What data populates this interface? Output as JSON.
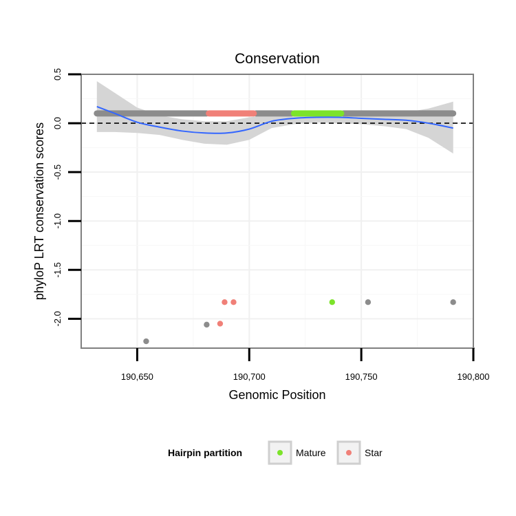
{
  "chart_data": {
    "type": "scatter",
    "title": "Conservation",
    "xlabel": "Genomic Position",
    "ylabel": "phyloP LRT conservation scores",
    "xlim": [
      190625,
      190800
    ],
    "ylim": [
      -2.3,
      0.5
    ],
    "x_ticks": [
      190650,
      190700,
      190750,
      190800
    ],
    "x_tick_labels": [
      "190,650",
      "190,700",
      "190,750",
      "190,800"
    ],
    "y_ticks": [
      0.5,
      0.0,
      -0.5,
      -1.0,
      -1.5,
      -2.0
    ],
    "y_tick_labels": [
      "0.5",
      "0.0",
      "-0.5",
      "-1.0",
      "-1.5",
      "-2.0"
    ],
    "reference_line": {
      "y": 0,
      "style": "dashed"
    },
    "legend": {
      "title": "Hairpin partition",
      "position": "bottom",
      "entries": [
        {
          "label": "Mature",
          "color": "#7CE32A"
        },
        {
          "label": "Star",
          "color": "#F08078"
        }
      ]
    },
    "colors": {
      "other": "#8C8C8C",
      "Mature": "#7CE32A",
      "Star": "#F08078",
      "smooth": "#3366FF",
      "band": "#D3D3D3"
    },
    "series": [
      {
        "name": "other",
        "segments": [
          [
            190632,
            190681
          ],
          [
            190703,
            190719
          ],
          [
            190742,
            190791
          ]
        ],
        "y": 0.1,
        "points": [
          [
            190654,
            -2.23
          ],
          [
            190681,
            -2.06
          ],
          [
            190753,
            -1.83
          ],
          [
            190791,
            -1.83
          ]
        ]
      },
      {
        "name": "Star",
        "segments": [
          [
            190682,
            190702
          ]
        ],
        "y": 0.1,
        "points": [
          [
            190687,
            -2.05
          ],
          [
            190689,
            -1.83
          ],
          [
            190693,
            -1.83
          ]
        ]
      },
      {
        "name": "Mature",
        "segments": [
          [
            190720,
            190741
          ]
        ],
        "y": 0.1,
        "points": [
          [
            190737,
            -1.83
          ]
        ]
      }
    ],
    "smooth": {
      "method": "loess",
      "x": [
        190632,
        190640,
        190650,
        190660,
        190670,
        190680,
        190690,
        190700,
        190710,
        190720,
        190730,
        190740,
        190750,
        190760,
        190770,
        190780,
        190791
      ],
      "y": [
        0.17,
        0.1,
        0.01,
        -0.04,
        -0.08,
        -0.1,
        -0.1,
        -0.06,
        0.02,
        0.05,
        0.06,
        0.06,
        0.05,
        0.04,
        0.03,
        0.0,
        -0.05
      ],
      "upper": [
        0.43,
        0.31,
        0.16,
        0.08,
        0.04,
        0.02,
        0.02,
        0.06,
        0.09,
        0.11,
        0.12,
        0.12,
        0.11,
        0.1,
        0.11,
        0.15,
        0.22
      ],
      "lower": [
        -0.09,
        -0.09,
        -0.1,
        -0.12,
        -0.17,
        -0.21,
        -0.22,
        -0.17,
        -0.05,
        -0.01,
        0.01,
        0.0,
        -0.01,
        -0.03,
        -0.06,
        -0.15,
        -0.31
      ]
    }
  }
}
